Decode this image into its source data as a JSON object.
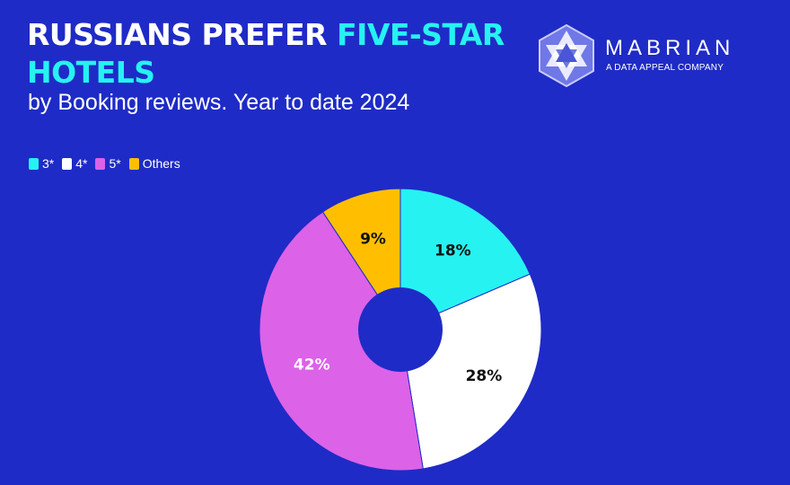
{
  "header": {
    "title_part1": "RUSSIANS PREFER ",
    "title_accent": "FIVE-STAR",
    "title_part2": "HOTELS",
    "subtitle": "by Booking reviews. Year to date 2024"
  },
  "logo": {
    "name": "MABRIAN",
    "tagline": "A DATA APPEAL COMPANY",
    "icon": "hexagon-star-icon"
  },
  "colors": {
    "background": "#1f2bc6",
    "accent": "#26f2f2"
  },
  "chart_data": {
    "type": "pie",
    "donut": true,
    "legend_position": "top-left",
    "categories": [
      "3*",
      "4*",
      "5*",
      "Others"
    ],
    "values": [
      18,
      28,
      42,
      9
    ],
    "labels": [
      "18%",
      "28%",
      "42%",
      "9%"
    ],
    "colors": [
      "#26f2f2",
      "#ffffff",
      "#dc62e8",
      "#ffbf00"
    ],
    "label_colors": [
      "#111111",
      "#111111",
      "#ffffff",
      "#111111"
    ],
    "unit": "%"
  }
}
